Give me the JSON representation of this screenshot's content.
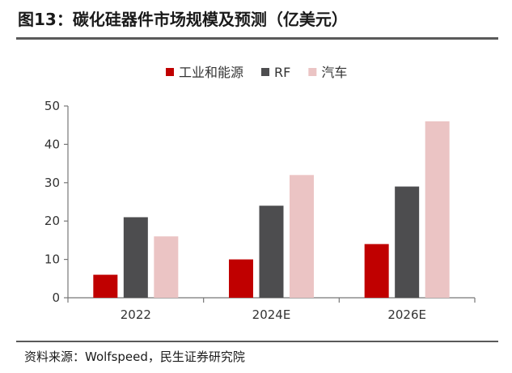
{
  "figure": {
    "title": "图13：碳化硅器件市场规模及预测（亿美元）",
    "source": "资料来源：Wolfspeed，民生证券研究院"
  },
  "chart_data": {
    "type": "bar",
    "title": "图13：碳化硅器件市场规模及预测（亿美元）",
    "xlabel": "",
    "ylabel": "",
    "categories": [
      "2022",
      "2024E",
      "2026E"
    ],
    "series": [
      {
        "name": "工业和能源",
        "color": "#C00000",
        "values": [
          6,
          10,
          14
        ]
      },
      {
        "name": "RF",
        "color": "#4D4D4F",
        "values": [
          21,
          24,
          29
        ]
      },
      {
        "name": "汽车",
        "color": "#EBC4C4",
        "values": [
          16,
          32,
          46
        ]
      }
    ],
    "ylim": [
      0,
      50
    ],
    "yticks": [
      0,
      10,
      20,
      30,
      40,
      50
    ],
    "grid": false,
    "legend": "top-center"
  }
}
